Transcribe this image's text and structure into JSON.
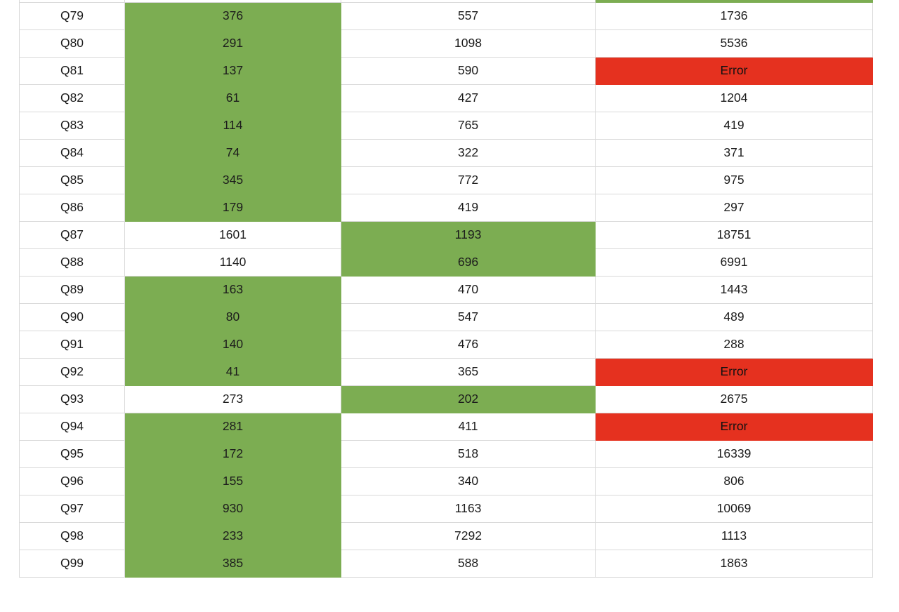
{
  "colors": {
    "highlight_green": "#7cad52",
    "error_red": "#e5311f",
    "grid_border": "#d9d9d9",
    "text": "#1c1c1c"
  },
  "chart_data": {
    "type": "table",
    "title": "",
    "columns": [
      "label",
      "value1",
      "value2",
      "value3"
    ],
    "grid": true,
    "top_partial_green_col": 2,
    "rows": [
      {
        "label": "Q79",
        "values": [
          "376",
          "557",
          "1736"
        ],
        "green": 0,
        "red": []
      },
      {
        "label": "Q80",
        "values": [
          "291",
          "1098",
          "5536"
        ],
        "green": 0,
        "red": []
      },
      {
        "label": "Q81",
        "values": [
          "137",
          "590",
          "Error"
        ],
        "green": 0,
        "red": [
          2
        ]
      },
      {
        "label": "Q82",
        "values": [
          "61",
          "427",
          "1204"
        ],
        "green": 0,
        "red": []
      },
      {
        "label": "Q83",
        "values": [
          "114",
          "765",
          "419"
        ],
        "green": 0,
        "red": []
      },
      {
        "label": "Q84",
        "values": [
          "74",
          "322",
          "371"
        ],
        "green": 0,
        "red": []
      },
      {
        "label": "Q85",
        "values": [
          "345",
          "772",
          "975"
        ],
        "green": 0,
        "red": []
      },
      {
        "label": "Q86",
        "values": [
          "179",
          "419",
          "297"
        ],
        "green": 0,
        "red": []
      },
      {
        "label": "Q87",
        "values": [
          "1601",
          "1193",
          "18751"
        ],
        "green": 1,
        "red": []
      },
      {
        "label": "Q88",
        "values": [
          "1140",
          "696",
          "6991"
        ],
        "green": 1,
        "red": []
      },
      {
        "label": "Q89",
        "values": [
          "163",
          "470",
          "1443"
        ],
        "green": 0,
        "red": []
      },
      {
        "label": "Q90",
        "values": [
          "80",
          "547",
          "489"
        ],
        "green": 0,
        "red": []
      },
      {
        "label": "Q91",
        "values": [
          "140",
          "476",
          "288"
        ],
        "green": 0,
        "red": []
      },
      {
        "label": "Q92",
        "values": [
          "41",
          "365",
          "Error"
        ],
        "green": 0,
        "red": [
          2
        ]
      },
      {
        "label": "Q93",
        "values": [
          "273",
          "202",
          "2675"
        ],
        "green": 1,
        "red": []
      },
      {
        "label": "Q94",
        "values": [
          "281",
          "411",
          "Error"
        ],
        "green": 0,
        "red": [
          2
        ]
      },
      {
        "label": "Q95",
        "values": [
          "172",
          "518",
          "16339"
        ],
        "green": 0,
        "red": []
      },
      {
        "label": "Q96",
        "values": [
          "155",
          "340",
          "806"
        ],
        "green": 0,
        "red": []
      },
      {
        "label": "Q97",
        "values": [
          "930",
          "1163",
          "10069"
        ],
        "green": 0,
        "red": []
      },
      {
        "label": "Q98",
        "values": [
          "233",
          "7292",
          "1113"
        ],
        "green": 0,
        "red": []
      },
      {
        "label": "Q99",
        "values": [
          "385",
          "588",
          "1863"
        ],
        "green": 0,
        "red": []
      }
    ]
  }
}
